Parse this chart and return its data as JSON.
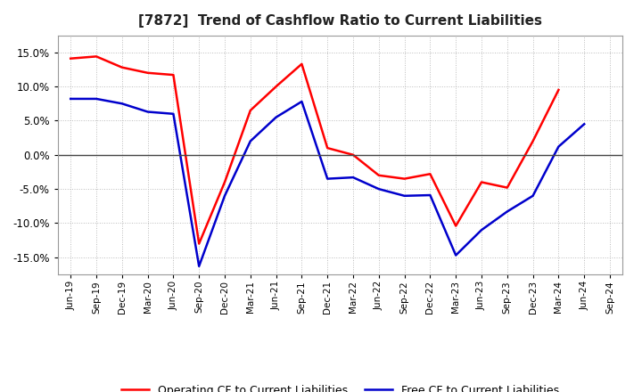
{
  "title": "[7872]  Trend of Cashflow Ratio to Current Liabilities",
  "x_labels": [
    "Jun-19",
    "Sep-19",
    "Dec-19",
    "Mar-20",
    "Jun-20",
    "Sep-20",
    "Dec-20",
    "Mar-21",
    "Jun-21",
    "Sep-21",
    "Dec-21",
    "Mar-22",
    "Jun-22",
    "Sep-22",
    "Dec-22",
    "Mar-23",
    "Jun-23",
    "Sep-23",
    "Dec-23",
    "Mar-24",
    "Jun-24",
    "Sep-24"
  ],
  "operating_cf": [
    0.141,
    0.144,
    0.128,
    0.12,
    0.117,
    -0.13,
    -0.04,
    0.065,
    0.1,
    0.133,
    0.01,
    0.0,
    -0.03,
    -0.035,
    -0.028,
    -0.104,
    -0.04,
    -0.048,
    0.02,
    0.095,
    null,
    null
  ],
  "free_cf": [
    0.082,
    0.082,
    0.075,
    0.063,
    0.06,
    -0.163,
    -0.06,
    0.02,
    0.055,
    0.078,
    -0.035,
    -0.033,
    -0.05,
    -0.06,
    -0.059,
    -0.147,
    -0.11,
    -0.083,
    -0.06,
    0.012,
    0.045,
    null
  ],
  "ylim": [
    -0.175,
    0.175
  ],
  "yticks": [
    -0.15,
    -0.1,
    -0.05,
    0.0,
    0.05,
    0.1,
    0.15
  ],
  "operating_color": "#FF0000",
  "free_color": "#0000CC",
  "background_color": "#FFFFFF",
  "grid_color": "#BBBBBB",
  "zero_line_color": "#444444",
  "legend_op": "Operating CF to Current Liabilities",
  "legend_free": "Free CF to Current Liabilities"
}
